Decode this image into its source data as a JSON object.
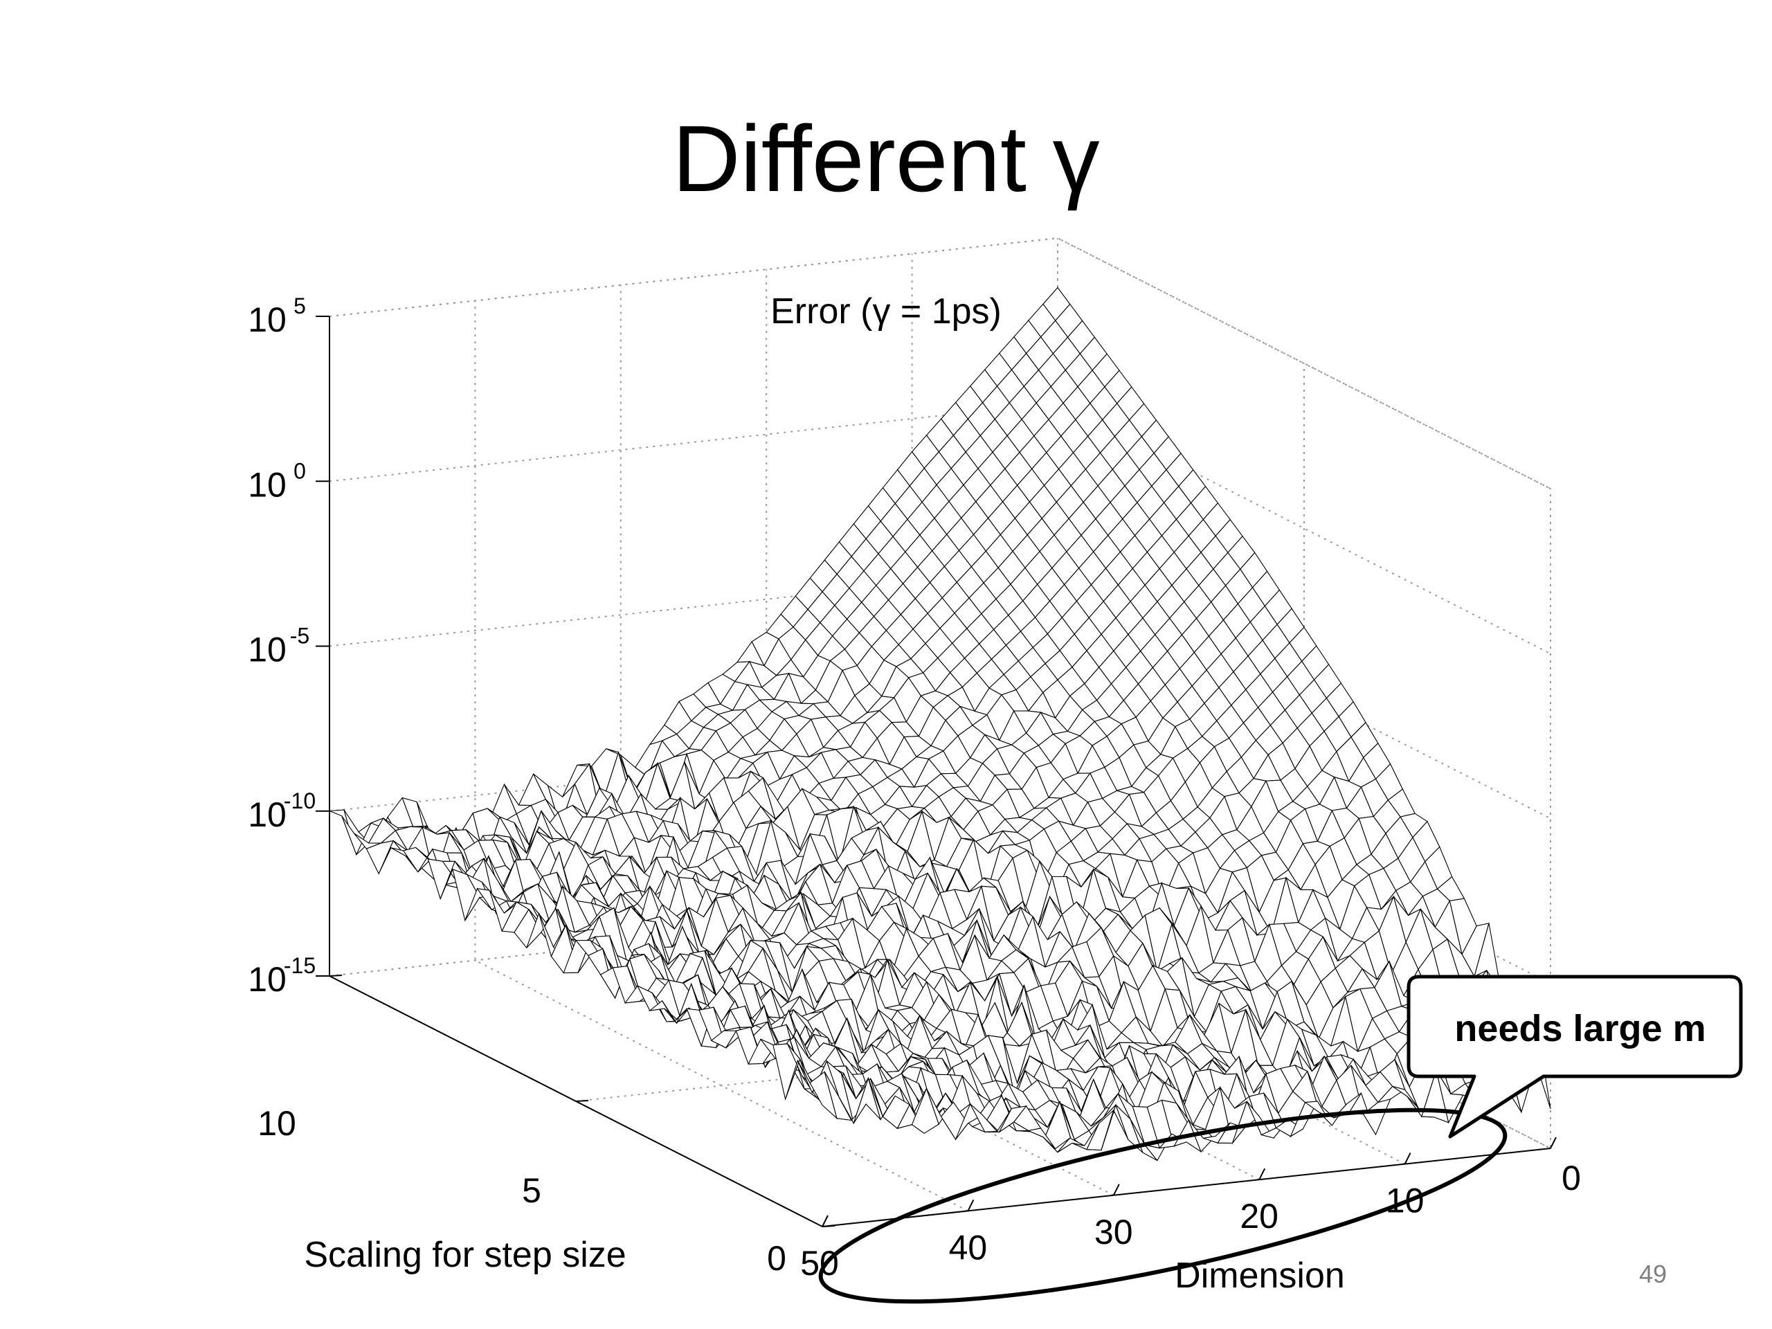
{
  "slide": {
    "title": "Different γ",
    "page_number": "49",
    "callout": "needs large m"
  },
  "chart_data": {
    "type": "surface",
    "title": "Error (γ = 1ps)",
    "xlabel": "Dimension",
    "ylabel": "Scaling for step size",
    "zlabel": "",
    "z_scale": "log",
    "x_ticks": [
      "50",
      "40",
      "30",
      "20",
      "10",
      "0"
    ],
    "y_ticks": [
      "10",
      "5",
      "0"
    ],
    "z_ticks": [
      {
        "base": "10",
        "exp": "5"
      },
      {
        "base": "10",
        "exp": "0"
      },
      {
        "base": "10",
        "exp": "-5"
      },
      {
        "base": "10",
        "exp": "-10"
      },
      {
        "base": "10",
        "exp": "-15"
      }
    ],
    "xlim": [
      0,
      50
    ],
    "ylim": [
      0,
      10
    ],
    "zlim_log10": [
      -15,
      5
    ],
    "grid": true,
    "approx_log10_error": {
      "step_scaling_values": [
        0,
        2,
        4,
        6,
        8,
        10
      ],
      "dimension_values": [
        0,
        10,
        20,
        30,
        40,
        50
      ],
      "rows_by_step_scaling": [
        [
          -13,
          -13.5,
          -13.5,
          -13.2,
          -12.5,
          -11
        ],
        [
          -8,
          -11.5,
          -12.5,
          -12.8,
          -12.2,
          -10.8
        ],
        [
          -4.5,
          -8.5,
          -10.5,
          -11.5,
          -11.8,
          -10.7
        ],
        [
          -1.5,
          -6,
          -9,
          -10.5,
          -11.2,
          -10.6
        ],
        [
          1,
          -3.5,
          -7.5,
          -10,
          -11,
          -10.5
        ],
        [
          3.5,
          -1,
          -6,
          -9.5,
          -10.8,
          -10.4
        ]
      ]
    }
  },
  "colors": {
    "callout_border": "#000000",
    "grid": "#9a9a9a",
    "surface_line": "#000000",
    "page_number": "#7f7f7f"
  }
}
